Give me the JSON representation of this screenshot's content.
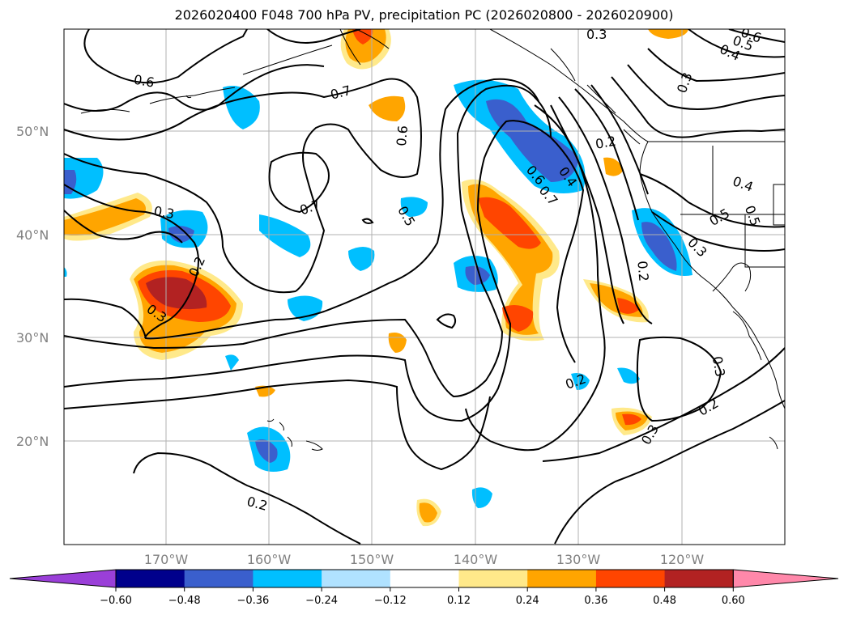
{
  "title": "2026020400 F048 700 hPa PV, precipitation PC (2026020800 - 2026020900)",
  "lat_labels": [
    "50°N",
    "40°N",
    "30°N",
    "20°N"
  ],
  "lon_labels": [
    "170°W",
    "160°W",
    "150°W",
    "140°W",
    "130°W",
    "120°W"
  ],
  "contour_labels": [
    "0.6",
    "0.7",
    "0.6",
    "0.7",
    "0.3",
    "0.2",
    "0.3",
    "0.5",
    "0.6",
    "0.7",
    "0.4",
    "0.2",
    "0.3",
    "0.2",
    "0.3",
    "0.2",
    "0.3",
    "0.4",
    "0.5",
    "0.5",
    "0.4",
    "0.3",
    "0.3",
    "0.5",
    "0.6",
    "0.2"
  ],
  "colorbar": {
    "ticks": [
      "−0.60",
      "−0.48",
      "−0.36",
      "−0.24",
      "−0.12",
      "0.12",
      "0.24",
      "0.36",
      "0.48",
      "0.60"
    ],
    "colors": [
      "#9a3fd8",
      "#00008c",
      "#3a5fcd",
      "#00bfff",
      "#b0e2ff",
      "#ffffff",
      "#ffe98a",
      "#ffa500",
      "#ff4500",
      "#b22222",
      "#ff88aa"
    ]
  },
  "palette": {
    "land_line": "#000000",
    "grid": "#b0b0b0",
    "contour": "#000000"
  }
}
